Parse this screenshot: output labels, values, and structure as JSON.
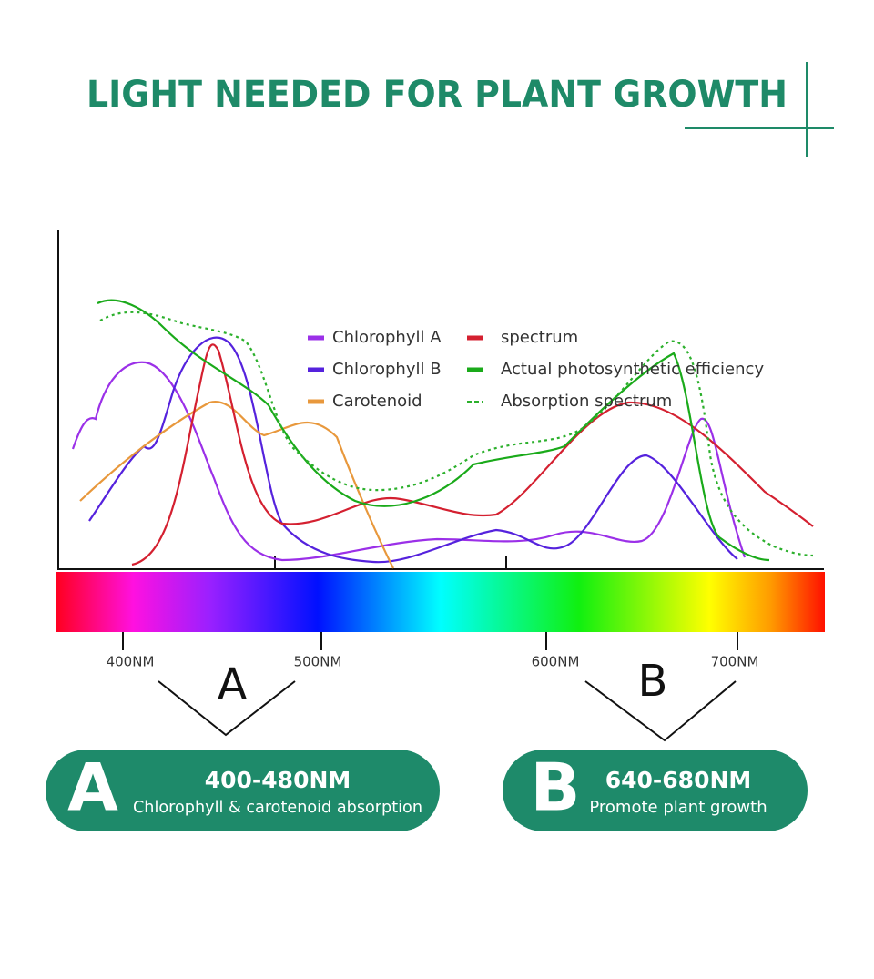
{
  "header": {
    "title": "LIGHT NEEDED FOR PLANT GROWTH"
  },
  "legend": [
    {
      "label": "Chlorophyll A",
      "color": "#9b30e8"
    },
    {
      "label": "Chlorophyll B",
      "color": "#5522dd"
    },
    {
      "label": "Carotenoid",
      "color": "#e8983c"
    },
    {
      "label": "spectrum",
      "color": "#d42030"
    },
    {
      "label": "Actual photosynthetic efficiency",
      "color": "#1aaa1a"
    },
    {
      "label": "Absorption spectrum",
      "color": "#2cb02c",
      "dashed": true
    }
  ],
  "wavelength_labels": [
    "400NM",
    "500NM",
    "600NM",
    "700NM"
  ],
  "bands": [
    "A",
    "B"
  ],
  "cards": [
    {
      "letter": "A",
      "range": "400-480NM",
      "description": "Chlorophyll & carotenoid absorption"
    },
    {
      "letter": "B",
      "range": "640-680NM",
      "description": "Promote plant growth"
    }
  ]
}
